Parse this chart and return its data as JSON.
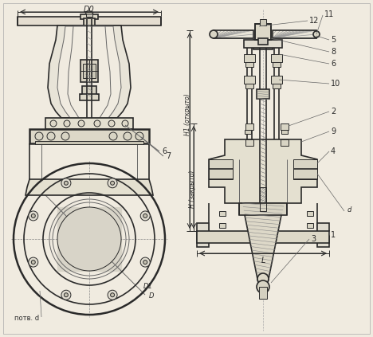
{
  "background_color": "#f0ebe0",
  "line_color": "#2a2a2a",
  "light_line_color": "#666666",
  "fig_width": 4.68,
  "fig_height": 4.23,
  "dpi": 100,
  "labels": {
    "D0": "D0",
    "D": "D",
    "D1": "D1",
    "potv_d": "потв. d",
    "L": "L",
    "H_closed": "H (закрыто)",
    "H1_open": "H1 (открыто)",
    "parts": [
      "1",
      "2",
      "3",
      "4",
      "5",
      "6",
      "7",
      "8",
      "9",
      "10",
      "11",
      "12"
    ]
  }
}
